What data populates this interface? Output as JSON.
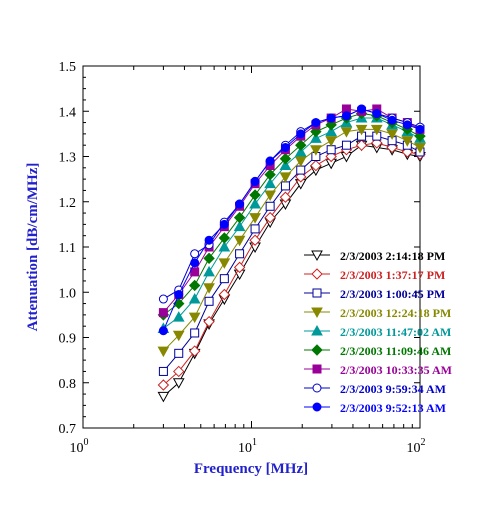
{
  "chart_data": {
    "type": "line",
    "title": "",
    "xlabel": "Frequency [MHz]",
    "ylabel": "Attenuation [dB/cm/MHz]",
    "x_scale": "log",
    "xlim": [
      1,
      100
    ],
    "ylim": [
      0.7,
      1.5
    ],
    "x_ticks": [
      {
        "value": 1,
        "base": "10",
        "exp": "0"
      },
      {
        "value": 10,
        "base": "10",
        "exp": "1"
      },
      {
        "value": 100,
        "base": "10",
        "exp": "2"
      }
    ],
    "y_ticks": [
      "0.7",
      "0.8",
      "0.9",
      "1.0",
      "1.1",
      "1.2",
      "1.3",
      "1.4",
      "1.5"
    ],
    "grid": false,
    "legend_position": "right",
    "label_color": "#2222cc",
    "x": [
      3.0,
      3.7,
      4.6,
      5.6,
      6.9,
      8.5,
      10.5,
      12.9,
      15.9,
      19.6,
      24.1,
      29.7,
      36.6,
      45.0,
      55.4,
      68.3,
      84.1,
      100
    ],
    "series": [
      {
        "name": "2/3/2003 2:14:18 PM",
        "color": "#000000",
        "marker": "tri-down-open",
        "values": [
          0.77,
          0.8,
          0.865,
          0.93,
          0.985,
          1.04,
          1.1,
          1.155,
          1.195,
          1.24,
          1.27,
          1.285,
          1.3,
          1.325,
          1.32,
          1.315,
          1.305,
          1.3
        ]
      },
      {
        "name": "2/3/2003 1:37:17 PM",
        "color": "#cc2222",
        "marker": "diamond-open",
        "values": [
          0.795,
          0.825,
          0.87,
          0.935,
          0.995,
          1.055,
          1.115,
          1.165,
          1.21,
          1.255,
          1.28,
          1.3,
          1.315,
          1.325,
          1.33,
          1.32,
          1.31,
          1.305
        ]
      },
      {
        "name": "2/3/2003 1:00:45 PM",
        "color": "#000099",
        "marker": "square-open",
        "values": [
          0.825,
          0.865,
          0.91,
          0.98,
          1.03,
          1.085,
          1.14,
          1.19,
          1.235,
          1.27,
          1.3,
          1.315,
          1.325,
          1.345,
          1.345,
          1.335,
          1.325,
          1.31
        ]
      },
      {
        "name": "2/3/2003 12:24:18 PM",
        "color": "#888800",
        "marker": "tri-down-filled",
        "values": [
          0.87,
          0.905,
          0.945,
          1.01,
          1.065,
          1.115,
          1.165,
          1.215,
          1.255,
          1.29,
          1.315,
          1.335,
          1.355,
          1.36,
          1.36,
          1.35,
          1.335,
          1.32
        ]
      },
      {
        "name": "2/3/2003 11:47:02 AM",
        "color": "#009999",
        "marker": "tri-up-filled",
        "values": [
          0.92,
          0.945,
          0.985,
          1.045,
          1.1,
          1.145,
          1.195,
          1.24,
          1.28,
          1.31,
          1.34,
          1.355,
          1.375,
          1.385,
          1.385,
          1.37,
          1.355,
          1.34
        ]
      },
      {
        "name": "2/3/2003 11:09:46 AM",
        "color": "#007700",
        "marker": "diamond-filled",
        "values": [
          0.95,
          0.975,
          1.015,
          1.075,
          1.12,
          1.165,
          1.215,
          1.26,
          1.295,
          1.325,
          1.355,
          1.37,
          1.385,
          1.395,
          1.39,
          1.375,
          1.36,
          1.345
        ]
      },
      {
        "name": "2/3/2003 10:33:35 AM",
        "color": "#990099",
        "marker": "square-filled",
        "values": [
          0.955,
          0.995,
          1.045,
          1.1,
          1.145,
          1.19,
          1.24,
          1.28,
          1.315,
          1.345,
          1.37,
          1.385,
          1.405,
          1.4,
          1.405,
          1.385,
          1.375,
          1.36
        ]
      },
      {
        "name": "2/3/2003 9:59:34 AM",
        "color": "#0000cc",
        "marker": "circle-open",
        "values": [
          0.985,
          1.005,
          1.085,
          1.105,
          1.155,
          1.195,
          1.245,
          1.29,
          1.325,
          1.355,
          1.375,
          1.385,
          1.39,
          1.405,
          1.395,
          1.385,
          1.375,
          1.365
        ]
      },
      {
        "name": "2/3/2003 9:52:13 AM",
        "color": "#0000ff",
        "marker": "circle-filled",
        "values": [
          0.915,
          0.995,
          1.065,
          1.115,
          1.15,
          1.195,
          1.245,
          1.29,
          1.32,
          1.35,
          1.375,
          1.385,
          1.39,
          1.405,
          1.395,
          1.38,
          1.37,
          1.36
        ]
      }
    ]
  }
}
